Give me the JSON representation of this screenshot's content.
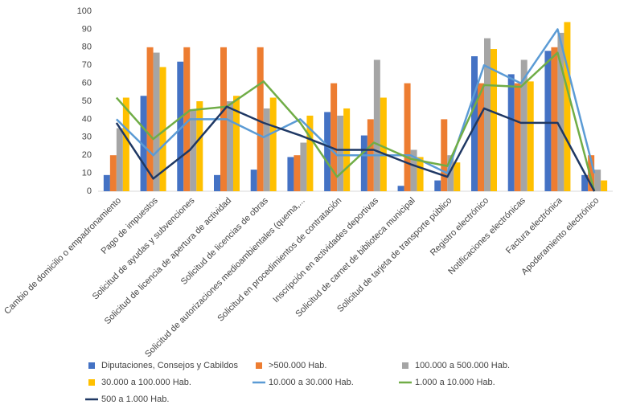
{
  "chart_data": {
    "type": "bar-line",
    "categories": [
      "Cambio de domicilio o empadronamiento",
      "Pago de impuestos",
      "Solicitud de ayudas y subvenciones",
      "Solicitud de licencia de apertura de actividad",
      "Solicitud de licencias de obras",
      "Solicitud de autorizaciones medioambientales (quema,...",
      "Solicitud en procedimientos de contratación",
      "Inscripción en actividades deportivas",
      "Solicitud de carnet de biblioteca municipal",
      "Solicitud de tarjeta de transporte público",
      "Registro electrónico",
      "Notificaciones electrónicas",
      "Factura electrónica",
      "Apoderamiento electrónico"
    ],
    "series": [
      {
        "name": "Diputaciones, Consejos y Cabildos",
        "type": "bar",
        "color": "#4472c4",
        "values": [
          9,
          53,
          72,
          9,
          12,
          19,
          44,
          31,
          3,
          6,
          75,
          65,
          78,
          9
        ]
      },
      {
        "name": ">500.000 Hab.",
        "type": "bar",
        "color": "#ed7d31",
        "values": [
          20,
          80,
          80,
          80,
          80,
          20,
          60,
          40,
          60,
          40,
          60,
          60,
          80,
          20
        ]
      },
      {
        "name": "100.000 a 500.000 Hab.",
        "type": "bar",
        "color": "#a5a5a5",
        "values": [
          35,
          77,
          45,
          50,
          46,
          27,
          42,
          73,
          23,
          20,
          85,
          73,
          88,
          12
        ]
      },
      {
        "name": "30.000 a 100.000 Hab.",
        "type": "bar",
        "color": "#ffc000",
        "values": [
          52,
          69,
          50,
          53,
          52,
          42,
          46,
          52,
          19,
          16,
          79,
          61,
          94,
          6
        ]
      },
      {
        "name": "10.000 a 30.000 Hab.",
        "type": "line",
        "color": "#5b9bd5",
        "values": [
          40,
          20,
          40,
          40,
          30,
          40,
          20,
          20,
          20,
          10,
          70,
          60,
          90,
          10
        ]
      },
      {
        "name": "1.000 a 10.000 Hab.",
        "type": "line",
        "color": "#70ad47",
        "values": [
          52,
          29,
          45,
          47,
          61,
          38,
          8,
          27,
          18,
          14,
          59,
          58,
          77,
          0
        ]
      },
      {
        "name": "500 a 1.000 Hab.",
        "type": "line",
        "color": "#1f3864",
        "values": [
          38,
          7,
          23,
          47,
          38,
          31,
          23,
          23,
          15,
          8,
          46,
          38,
          38,
          0
        ]
      }
    ],
    "ylim": [
      0,
      100
    ],
    "yticks": [
      0,
      10,
      20,
      30,
      40,
      50,
      60,
      70,
      80,
      90,
      100
    ],
    "grid": false,
    "legend": "bottom"
  }
}
